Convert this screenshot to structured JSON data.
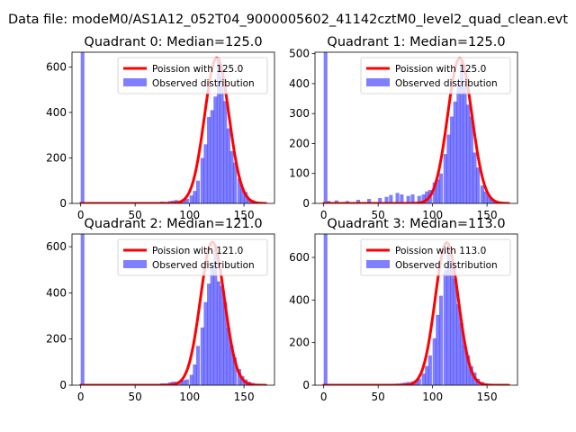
{
  "figure": {
    "suptitle": "Data file: modeM0/AS1A12_052T04_9000005602_41142cztM0_level2_quad_clean.evt"
  },
  "chart_data": [
    {
      "type": "histogram",
      "title": "Quadrant 0: Median=125.0",
      "median": 125.0,
      "xlim": [
        -8,
        178
      ],
      "ylim": [
        0,
        665
      ],
      "xticks": [
        0,
        50,
        100,
        150
      ],
      "yticks": [
        0,
        200,
        400,
        600
      ],
      "legend_loc": "upper right",
      "series": [
        {
          "name": "Poission with 125.0",
          "kind": "line",
          "color": "#ff0000",
          "mu": 125.0,
          "peak": 640
        },
        {
          "name": "Observed distribution",
          "kind": "bar",
          "color": "#0000ff",
          "alpha": 0.5,
          "bin_width": 3.4,
          "bins": [
            [
              0,
              665
            ],
            [
              70,
              5
            ],
            [
              73,
              8
            ],
            [
              76,
              7
            ],
            [
              80,
              10
            ],
            [
              83,
              12
            ],
            [
              86,
              15
            ],
            [
              90,
              12
            ],
            [
              93,
              18
            ],
            [
              96,
              20
            ],
            [
              100,
              35
            ],
            [
              103,
              55
            ],
            [
              106,
              100
            ],
            [
              110,
              200
            ],
            [
              113,
              260
            ],
            [
              116,
              380
            ],
            [
              119,
              410
            ],
            [
              122,
              470
            ],
            [
              125,
              640
            ],
            [
              128,
              560
            ],
            [
              131,
              450
            ],
            [
              134,
              330
            ],
            [
              137,
              230
            ],
            [
              140,
              180
            ],
            [
              144,
              110
            ],
            [
              147,
              65
            ],
            [
              150,
              50
            ],
            [
              153,
              20
            ],
            [
              156,
              15
            ],
            [
              160,
              5
            ]
          ]
        }
      ]
    },
    {
      "type": "histogram",
      "title": "Quadrant 1: Median=125.0",
      "median": 125.0,
      "xlim": [
        -8,
        178
      ],
      "ylim": [
        0,
        505
      ],
      "xticks": [
        0,
        50,
        100,
        150
      ],
      "yticks": [
        0,
        100,
        200,
        300,
        400,
        500
      ],
      "legend_loc": "upper right",
      "series": [
        {
          "name": "Poission with 125.0",
          "kind": "line",
          "color": "#ff0000",
          "mu": 125.0,
          "peak": 485
        },
        {
          "name": "Observed distribution",
          "kind": "bar",
          "color": "#0000ff",
          "alpha": 0.5,
          "bin_width": 3.4,
          "bins": [
            [
              0,
              505
            ],
            [
              3,
              8
            ],
            [
              10,
              10
            ],
            [
              20,
              8
            ],
            [
              30,
              12
            ],
            [
              40,
              15
            ],
            [
              50,
              18
            ],
            [
              56,
              22
            ],
            [
              60,
              28
            ],
            [
              66,
              35
            ],
            [
              70,
              30
            ],
            [
              76,
              25
            ],
            [
              80,
              30
            ],
            [
              86,
              25
            ],
            [
              90,
              30
            ],
            [
              93,
              40
            ],
            [
              96,
              45
            ],
            [
              100,
              70
            ],
            [
              103,
              80
            ],
            [
              106,
              100
            ],
            [
              110,
              165
            ],
            [
              113,
              230
            ],
            [
              116,
              290
            ],
            [
              119,
              340
            ],
            [
              122,
              400
            ],
            [
              125,
              470
            ],
            [
              128,
              400
            ],
            [
              131,
              330
            ],
            [
              134,
              290
            ],
            [
              137,
              170
            ],
            [
              140,
              120
            ],
            [
              144,
              60
            ],
            [
              147,
              40
            ],
            [
              150,
              25
            ],
            [
              153,
              15
            ],
            [
              156,
              10
            ],
            [
              160,
              5
            ]
          ]
        }
      ]
    },
    {
      "type": "histogram",
      "title": "Quadrant 2: Median=121.0",
      "median": 121.0,
      "xlim": [
        -8,
        178
      ],
      "ylim": [
        0,
        655
      ],
      "xticks": [
        0,
        50,
        100,
        150
      ],
      "yticks": [
        0,
        200,
        400,
        600
      ],
      "legend_loc": "upper right",
      "series": [
        {
          "name": "Poission with 121.0",
          "kind": "line",
          "color": "#ff0000",
          "mu": 121.0,
          "peak": 620
        },
        {
          "name": "Observed distribution",
          "kind": "bar",
          "color": "#0000ff",
          "alpha": 0.5,
          "bin_width": 3.4,
          "bins": [
            [
              0,
              655
            ],
            [
              70,
              5
            ],
            [
              73,
              8
            ],
            [
              76,
              8
            ],
            [
              80,
              12
            ],
            [
              83,
              15
            ],
            [
              86,
              15
            ],
            [
              90,
              20
            ],
            [
              93,
              22
            ],
            [
              96,
              25
            ],
            [
              100,
              45
            ],
            [
              103,
              90
            ],
            [
              106,
              170
            ],
            [
              110,
              250
            ],
            [
              113,
              360
            ],
            [
              116,
              440
            ],
            [
              119,
              520
            ],
            [
              122,
              590
            ],
            [
              125,
              450
            ],
            [
              128,
              430
            ],
            [
              131,
              360
            ],
            [
              134,
              250
            ],
            [
              137,
              170
            ],
            [
              140,
              120
            ],
            [
              144,
              70
            ],
            [
              147,
              40
            ],
            [
              150,
              25
            ],
            [
              153,
              15
            ],
            [
              156,
              10
            ]
          ]
        }
      ]
    },
    {
      "type": "histogram",
      "title": "Quadrant 3: Median=113.0",
      "median": 113.0,
      "xlim": [
        -8,
        178
      ],
      "ylim": [
        0,
        710
      ],
      "xticks": [
        0,
        50,
        100,
        150
      ],
      "yticks": [
        0,
        200,
        400,
        600
      ],
      "legend_loc": "upper right",
      "series": [
        {
          "name": "Poission with 113.0",
          "kind": "line",
          "color": "#ff0000",
          "mu": 113.0,
          "peak": 670
        },
        {
          "name": "Observed distribution",
          "kind": "bar",
          "color": "#0000ff",
          "alpha": 0.5,
          "bin_width": 3.4,
          "bins": [
            [
              0,
              710
            ],
            [
              60,
              5
            ],
            [
              66,
              8
            ],
            [
              70,
              10
            ],
            [
              73,
              12
            ],
            [
              76,
              15
            ],
            [
              80,
              18
            ],
            [
              83,
              22
            ],
            [
              86,
              30
            ],
            [
              90,
              55
            ],
            [
              93,
              90
            ],
            [
              96,
              140
            ],
            [
              100,
              220
            ],
            [
              103,
              330
            ],
            [
              106,
              420
            ],
            [
              110,
              540
            ],
            [
              113,
              650
            ],
            [
              116,
              560
            ],
            [
              119,
              500
            ],
            [
              122,
              380
            ],
            [
              125,
              290
            ],
            [
              128,
              190
            ],
            [
              131,
              140
            ],
            [
              134,
              90
            ],
            [
              137,
              60
            ],
            [
              140,
              30
            ],
            [
              144,
              15
            ],
            [
              147,
              8
            ],
            [
              150,
              5
            ]
          ]
        }
      ]
    }
  ]
}
